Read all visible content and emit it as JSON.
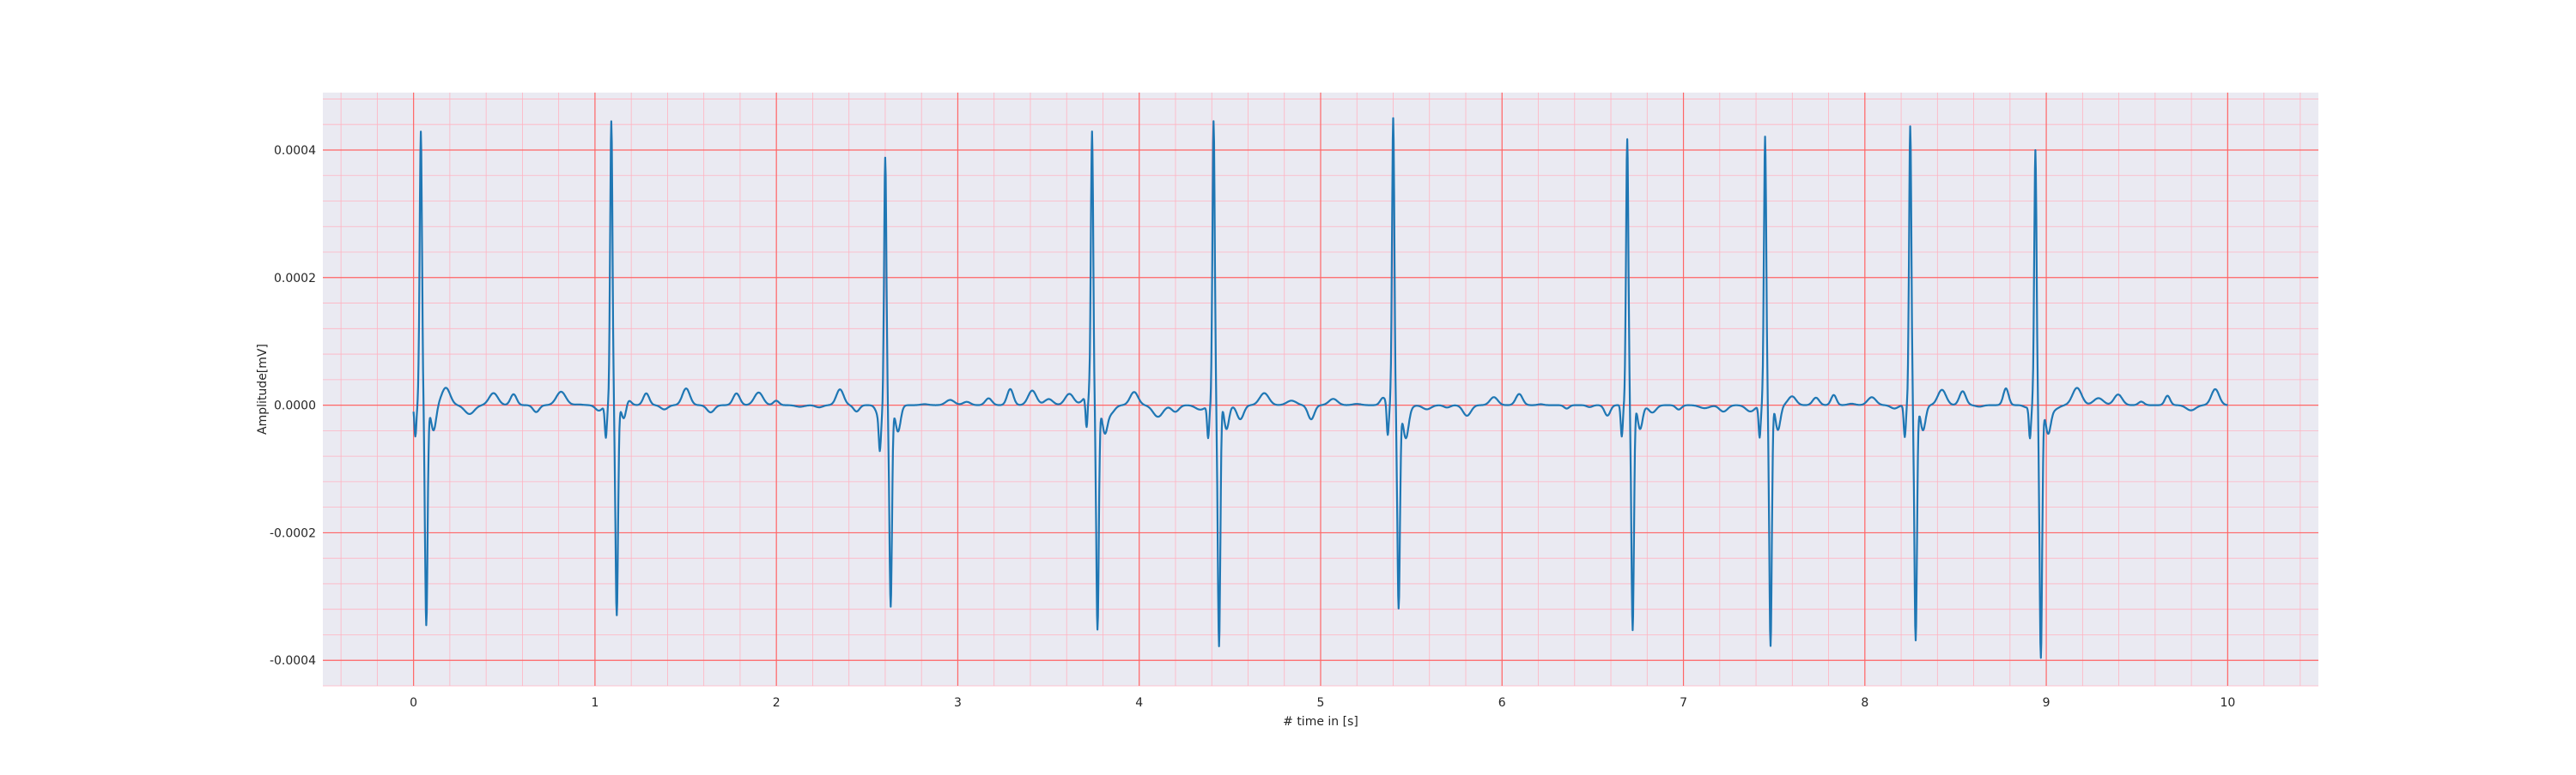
{
  "chart_data": {
    "type": "line",
    "title": "",
    "xlabel": "# time in [s]",
    "ylabel": "Amplitude[mV]",
    "xlim": [
      -0.5,
      10.5
    ],
    "ylim": [
      -0.00044,
      0.00049
    ],
    "xticks": [
      0,
      1,
      2,
      3,
      4,
      5,
      6,
      7,
      8,
      9,
      10
    ],
    "xtick_labels": [
      "0",
      "1",
      "2",
      "3",
      "4",
      "5",
      "6",
      "7",
      "8",
      "9",
      "10"
    ],
    "yticks": [
      0.0004,
      0.0002,
      0.0,
      -0.0002,
      -0.0004
    ],
    "ytick_labels": [
      "0.0004",
      "0.0002",
      "0.0000",
      "-0.0002",
      "-0.0004"
    ],
    "grid": {
      "major": true,
      "minor": true,
      "major_color": "#ff6666",
      "minor_color": "#ffb3c1"
    },
    "background_color": "#eaeaf2",
    "series": [
      {
        "color": "#1f77b4",
        "sample_rate_hz": 100,
        "r_peaks": [
          {
            "t": 0.04,
            "r": 0.00042,
            "s": -0.00035
          },
          {
            "t": 1.09,
            "r": 0.000445,
            "s": -0.00033
          },
          {
            "t": 2.6,
            "r": 0.000395,
            "s": -0.000315
          },
          {
            "t": 3.74,
            "r": 0.000415,
            "s": -0.000355
          },
          {
            "t": 4.41,
            "r": 0.00044,
            "s": -0.000395
          },
          {
            "t": 5.4,
            "r": 0.00045,
            "s": -0.000315
          },
          {
            "t": 6.69,
            "r": 0.00041,
            "s": -0.000365
          },
          {
            "t": 7.45,
            "r": 0.000415,
            "s": -0.000395
          },
          {
            "t": 8.25,
            "r": 0.000435,
            "s": -0.000375
          },
          {
            "t": 8.94,
            "r": 0.0004,
            "s": -0.000395
          }
        ],
        "t_start": 0.0,
        "t_end": 10.0
      }
    ]
  }
}
